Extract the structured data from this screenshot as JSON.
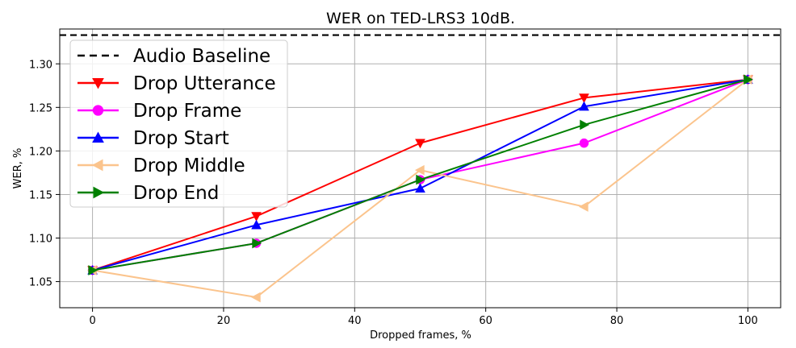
{
  "chart_data": {
    "type": "line",
    "title": "WER on TED-LRS3 10dB.",
    "xlabel": "Dropped frames, %",
    "ylabel": "WER, %",
    "xlim": [
      -5,
      105
    ],
    "ylim": [
      1.02,
      1.34
    ],
    "xticks": [
      0,
      20,
      40,
      60,
      80,
      100
    ],
    "yticks": [
      1.05,
      1.1,
      1.15,
      1.2,
      1.25,
      1.3
    ],
    "ytick_labels": [
      "1.05",
      "1.10",
      "1.15",
      "1.20",
      "1.25",
      "1.30"
    ],
    "grid": true,
    "legend_position": "top-left",
    "baseline": {
      "name": "Audio Baseline",
      "value": 1.333,
      "color": "#000000",
      "style": "dashed"
    },
    "series": [
      {
        "name": "Drop Utterance",
        "color": "#ff0000",
        "marker": "triangle-down",
        "x": [
          0,
          25,
          50,
          75,
          100
        ],
        "values": [
          1.063,
          1.125,
          1.209,
          1.261,
          1.282
        ]
      },
      {
        "name": "Drop Frame",
        "color": "#ff00ff",
        "marker": "circle",
        "x": [
          0,
          25,
          50,
          75,
          100
        ],
        "values": [
          1.063,
          1.094,
          1.167,
          1.209,
          1.282
        ]
      },
      {
        "name": "Drop Start",
        "color": "#0000ff",
        "marker": "triangle-up",
        "x": [
          0,
          25,
          50,
          75,
          100
        ],
        "values": [
          1.063,
          1.115,
          1.157,
          1.251,
          1.282
        ]
      },
      {
        "name": "Drop Middle",
        "color": "#fbc48d",
        "marker": "triangle-left",
        "x": [
          0,
          25,
          50,
          75,
          100
        ],
        "values": [
          1.063,
          1.032,
          1.178,
          1.136,
          1.282
        ]
      },
      {
        "name": "Drop End",
        "color": "#008000",
        "marker": "triangle-right",
        "x": [
          0,
          25,
          50,
          75,
          100
        ],
        "values": [
          1.063,
          1.094,
          1.167,
          1.23,
          1.282
        ]
      }
    ]
  }
}
